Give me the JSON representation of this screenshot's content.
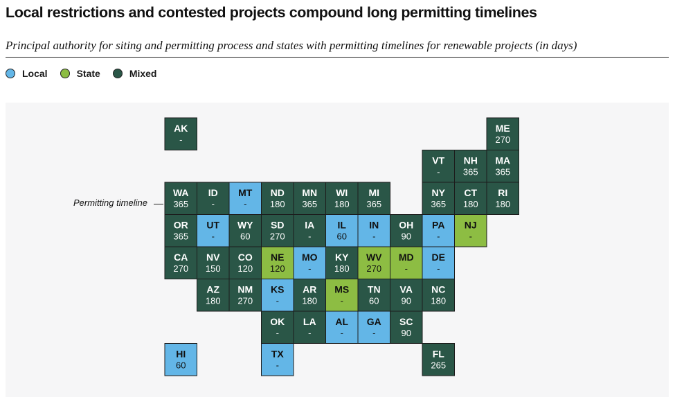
{
  "title": "Local restrictions and contested projects compound long permitting timelines",
  "subtitle": "Principal authority for siting and permitting process and states with permitting timelines for renewable projects (in days)",
  "annotation": "Permitting timeline",
  "colors": {
    "Local": "#63b6e7",
    "State": "#8dbd43",
    "Mixed": "#2a5647"
  },
  "legend": [
    {
      "label": "Local",
      "color": "#63b6e7"
    },
    {
      "label": "State",
      "color": "#8dbd43"
    },
    {
      "label": "Mixed",
      "color": "#2a5647"
    }
  ],
  "chart_data": {
    "type": "table",
    "categories": [
      "Local",
      "State",
      "Mixed"
    ],
    "states": [
      {
        "abbr": "AK",
        "authority": "Mixed",
        "days": "-",
        "row": 0,
        "col": 0
      },
      {
        "abbr": "ME",
        "authority": "Mixed",
        "days": "270",
        "row": 0,
        "col": 10
      },
      {
        "abbr": "VT",
        "authority": "Mixed",
        "days": "-",
        "row": 1,
        "col": 8
      },
      {
        "abbr": "NH",
        "authority": "Mixed",
        "days": "365",
        "row": 1,
        "col": 9
      },
      {
        "abbr": "MA",
        "authority": "Mixed",
        "days": "365",
        "row": 1,
        "col": 10
      },
      {
        "abbr": "WA",
        "authority": "Mixed",
        "days": "365",
        "row": 2,
        "col": 0
      },
      {
        "abbr": "ID",
        "authority": "Mixed",
        "days": "-",
        "row": 2,
        "col": 1
      },
      {
        "abbr": "MT",
        "authority": "Local",
        "days": "-",
        "row": 2,
        "col": 2
      },
      {
        "abbr": "ND",
        "authority": "Mixed",
        "days": "180",
        "row": 2,
        "col": 3
      },
      {
        "abbr": "MN",
        "authority": "Mixed",
        "days": "365",
        "row": 2,
        "col": 4
      },
      {
        "abbr": "WI",
        "authority": "Mixed",
        "days": "180",
        "row": 2,
        "col": 5
      },
      {
        "abbr": "MI",
        "authority": "Mixed",
        "days": "365",
        "row": 2,
        "col": 6
      },
      {
        "abbr": "NY",
        "authority": "Mixed",
        "days": "365",
        "row": 2,
        "col": 8
      },
      {
        "abbr": "CT",
        "authority": "Mixed",
        "days": "180",
        "row": 2,
        "col": 9
      },
      {
        "abbr": "RI",
        "authority": "Mixed",
        "days": "180",
        "row": 2,
        "col": 10
      },
      {
        "abbr": "OR",
        "authority": "Mixed",
        "days": "365",
        "row": 3,
        "col": 0
      },
      {
        "abbr": "UT",
        "authority": "Local",
        "days": "-",
        "row": 3,
        "col": 1
      },
      {
        "abbr": "WY",
        "authority": "Mixed",
        "days": "60",
        "row": 3,
        "col": 2
      },
      {
        "abbr": "SD",
        "authority": "Mixed",
        "days": "270",
        "row": 3,
        "col": 3
      },
      {
        "abbr": "IA",
        "authority": "Mixed",
        "days": "-",
        "row": 3,
        "col": 4
      },
      {
        "abbr": "IL",
        "authority": "Local",
        "days": "60",
        "row": 3,
        "col": 5
      },
      {
        "abbr": "IN",
        "authority": "Local",
        "days": "-",
        "row": 3,
        "col": 6
      },
      {
        "abbr": "OH",
        "authority": "Mixed",
        "days": "90",
        "row": 3,
        "col": 7
      },
      {
        "abbr": "PA",
        "authority": "Local",
        "days": "-",
        "row": 3,
        "col": 8
      },
      {
        "abbr": "NJ",
        "authority": "State",
        "days": "-",
        "row": 3,
        "col": 9
      },
      {
        "abbr": "CA",
        "authority": "Mixed",
        "days": "270",
        "row": 4,
        "col": 0
      },
      {
        "abbr": "NV",
        "authority": "Mixed",
        "days": "150",
        "row": 4,
        "col": 1
      },
      {
        "abbr": "CO",
        "authority": "Mixed",
        "days": "120",
        "row": 4,
        "col": 2
      },
      {
        "abbr": "NE",
        "authority": "State",
        "days": "120",
        "row": 4,
        "col": 3
      },
      {
        "abbr": "MO",
        "authority": "Local",
        "days": "-",
        "row": 4,
        "col": 4
      },
      {
        "abbr": "KY",
        "authority": "Mixed",
        "days": "180",
        "row": 4,
        "col": 5
      },
      {
        "abbr": "WV",
        "authority": "State",
        "days": "270",
        "row": 4,
        "col": 6
      },
      {
        "abbr": "MD",
        "authority": "State",
        "days": "-",
        "row": 4,
        "col": 7
      },
      {
        "abbr": "DE",
        "authority": "Local",
        "days": "-",
        "row": 4,
        "col": 8
      },
      {
        "abbr": "AZ",
        "authority": "Mixed",
        "days": "180",
        "row": 5,
        "col": 1
      },
      {
        "abbr": "NM",
        "authority": "Mixed",
        "days": "270",
        "row": 5,
        "col": 2
      },
      {
        "abbr": "KS",
        "authority": "Local",
        "days": "-",
        "row": 5,
        "col": 3
      },
      {
        "abbr": "AR",
        "authority": "Mixed",
        "days": "180",
        "row": 5,
        "col": 4
      },
      {
        "abbr": "MS",
        "authority": "State",
        "days": "-",
        "row": 5,
        "col": 5
      },
      {
        "abbr": "TN",
        "authority": "Mixed",
        "days": "60",
        "row": 5,
        "col": 6
      },
      {
        "abbr": "VA",
        "authority": "Mixed",
        "days": "90",
        "row": 5,
        "col": 7
      },
      {
        "abbr": "NC",
        "authority": "Mixed",
        "days": "180",
        "row": 5,
        "col": 8
      },
      {
        "abbr": "OK",
        "authority": "Mixed",
        "days": "-",
        "row": 6,
        "col": 3
      },
      {
        "abbr": "LA",
        "authority": "Mixed",
        "days": "-",
        "row": 6,
        "col": 4
      },
      {
        "abbr": "AL",
        "authority": "Local",
        "days": "-",
        "row": 6,
        "col": 5
      },
      {
        "abbr": "GA",
        "authority": "Local",
        "days": "-",
        "row": 6,
        "col": 6
      },
      {
        "abbr": "SC",
        "authority": "Mixed",
        "days": "90",
        "row": 6,
        "col": 7
      },
      {
        "abbr": "HI",
        "authority": "Local",
        "days": "60",
        "row": 7,
        "col": 0
      },
      {
        "abbr": "TX",
        "authority": "Local",
        "days": "-",
        "row": 7,
        "col": 3
      },
      {
        "abbr": "FL",
        "authority": "Mixed",
        "days": "265",
        "row": 7,
        "col": 8
      }
    ]
  }
}
